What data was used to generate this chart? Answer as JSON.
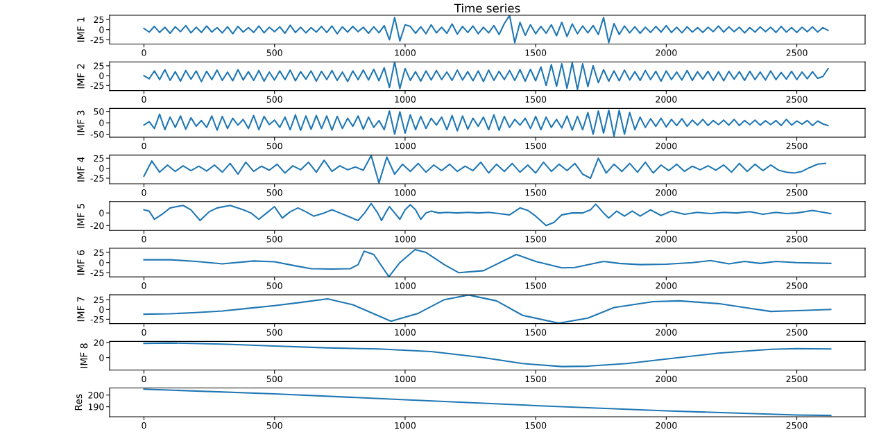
{
  "chart_data": [
    {
      "type": "line",
      "title": "Time series",
      "ylabel": "IMF 1",
      "color": "#1f77b4",
      "xlim": [
        -131.5,
        2761.5
      ],
      "xticks": [
        0,
        500,
        1000,
        1500,
        2000,
        2500
      ],
      "ylim": [
        -35.5,
        35.5
      ],
      "yticks": [
        -25,
        0,
        25
      ],
      "x": [
        0,
        20,
        40,
        60,
        80,
        100,
        120,
        140,
        160,
        180,
        200,
        220,
        240,
        260,
        280,
        300,
        320,
        340,
        360,
        380,
        400,
        420,
        440,
        460,
        480,
        500,
        520,
        540,
        560,
        580,
        600,
        620,
        640,
        660,
        680,
        700,
        720,
        740,
        760,
        780,
        800,
        820,
        840,
        860,
        880,
        900,
        920,
        940,
        960,
        980,
        1000,
        1020,
        1040,
        1060,
        1080,
        1100,
        1120,
        1140,
        1160,
        1180,
        1200,
        1220,
        1240,
        1260,
        1280,
        1300,
        1320,
        1340,
        1360,
        1380,
        1400,
        1420,
        1440,
        1460,
        1480,
        1500,
        1520,
        1540,
        1560,
        1580,
        1600,
        1620,
        1640,
        1660,
        1680,
        1700,
        1720,
        1740,
        1760,
        1780,
        1800,
        1820,
        1840,
        1860,
        1880,
        1900,
        1920,
        1940,
        1960,
        1980,
        2000,
        2020,
        2040,
        2060,
        2080,
        2100,
        2120,
        2140,
        2160,
        2180,
        2200,
        2220,
        2240,
        2260,
        2280,
        2300,
        2320,
        2340,
        2360,
        2380,
        2400,
        2420,
        2440,
        2460,
        2480,
        2500,
        2520,
        2540,
        2560,
        2580,
        2600,
        2620
      ],
      "values": [
        3,
        -6,
        8,
        -7,
        6,
        -9,
        7,
        -5,
        10,
        -8,
        6,
        -7,
        9,
        -6,
        5,
        -8,
        7,
        -10,
        8,
        -6,
        5,
        -7,
        9,
        -8,
        6,
        -5,
        7,
        -9,
        11,
        -7,
        6,
        -8,
        5,
        -6,
        8,
        -7,
        9,
        -10,
        7,
        -6,
        8,
        -5,
        6,
        -9,
        7,
        -8,
        10,
        -25,
        30,
        -28,
        12,
        8,
        -9,
        7,
        -10,
        12,
        -8,
        6,
        -9,
        14,
        -11,
        8,
        -7,
        9,
        -10,
        6,
        -8,
        10,
        -12,
        15,
        35,
        -32,
        18,
        -14,
        12,
        -10,
        8,
        -9,
        12,
        -15,
        18,
        -17,
        14,
        -10,
        9,
        -8,
        10,
        -12,
        30,
        -32,
        15,
        -12,
        9,
        -8,
        7,
        -9,
        6,
        -7,
        8,
        -6,
        10,
        -7,
        6,
        -8,
        7,
        -6,
        5,
        -7,
        6,
        -5,
        9,
        -6,
        7,
        -5,
        6,
        -8,
        5,
        -6,
        7,
        -5,
        6,
        -7,
        8,
        -6,
        5,
        -7,
        6,
        -5,
        7,
        -6,
        5,
        -2
      ]
    },
    {
      "type": "line",
      "ylabel": "IMF 2",
      "color": "#1f77b4",
      "xlim": [
        -131.5,
        2761.5
      ],
      "xticks": [
        0,
        500,
        1000,
        1500,
        2000,
        2500
      ],
      "ylim": [
        -38,
        35
      ],
      "yticks": [
        -25,
        0,
        25
      ],
      "x": [
        0,
        20,
        40,
        60,
        80,
        100,
        120,
        140,
        160,
        180,
        200,
        220,
        240,
        260,
        280,
        300,
        320,
        340,
        360,
        380,
        400,
        420,
        440,
        460,
        480,
        500,
        520,
        540,
        560,
        580,
        600,
        620,
        640,
        660,
        680,
        700,
        720,
        740,
        760,
        780,
        800,
        820,
        840,
        860,
        880,
        900,
        920,
        940,
        960,
        980,
        1000,
        1020,
        1040,
        1060,
        1080,
        1100,
        1120,
        1140,
        1160,
        1180,
        1200,
        1220,
        1240,
        1260,
        1280,
        1300,
        1320,
        1340,
        1360,
        1380,
        1400,
        1420,
        1440,
        1460,
        1480,
        1500,
        1520,
        1540,
        1560,
        1580,
        1600,
        1620,
        1640,
        1660,
        1680,
        1700,
        1720,
        1740,
        1760,
        1780,
        1800,
        1820,
        1840,
        1860,
        1880,
        1900,
        1920,
        1940,
        1960,
        1980,
        2000,
        2020,
        2040,
        2060,
        2080,
        2100,
        2120,
        2140,
        2160,
        2180,
        2200,
        2220,
        2240,
        2260,
        2280,
        2300,
        2320,
        2340,
        2360,
        2380,
        2400,
        2420,
        2440,
        2460,
        2480,
        2500,
        2520,
        2540,
        2560,
        2580,
        2600,
        2620
      ],
      "values": [
        0,
        -8,
        12,
        -10,
        15,
        -12,
        10,
        -14,
        13,
        -9,
        12,
        -15,
        11,
        -10,
        14,
        -12,
        9,
        -13,
        15,
        -11,
        10,
        -12,
        13,
        -14,
        9,
        -11,
        12,
        -10,
        14,
        -13,
        10,
        -9,
        12,
        -14,
        11,
        -10,
        13,
        -12,
        9,
        -15,
        12,
        -10,
        14,
        -11,
        16,
        -13,
        20,
        -30,
        35,
        -33,
        18,
        -12,
        10,
        -14,
        12,
        -11,
        13,
        -10,
        9,
        -12,
        14,
        -11,
        10,
        -13,
        12,
        -15,
        14,
        -12,
        11,
        -10,
        13,
        -12,
        15,
        -14,
        16,
        -13,
        22,
        -25,
        28,
        -27,
        30,
        -32,
        33,
        -35,
        30,
        -28,
        25,
        -18,
        15,
        -14,
        12,
        -13,
        14,
        -11,
        10,
        -12,
        13,
        -10,
        11,
        -14,
        12,
        -10,
        9,
        -11,
        13,
        -12,
        10,
        -9,
        11,
        -12,
        10,
        -13,
        11,
        -9,
        10,
        -12,
        11,
        -10,
        9,
        -11,
        12,
        -10,
        8,
        -9,
        11,
        -10,
        9,
        -8,
        10,
        -7,
        -2,
        18
      ]
    },
    {
      "type": "line",
      "ylabel": "IMF 3",
      "color": "#1f77b4",
      "xlim": [
        -131.5,
        2761.5
      ],
      "xticks": [
        0,
        500,
        1000,
        1500,
        2000,
        2500
      ],
      "ylim": [
        -63,
        63
      ],
      "yticks": [
        -50,
        0,
        50
      ],
      "x": [
        0,
        20,
        40,
        60,
        80,
        100,
        120,
        140,
        160,
        180,
        200,
        220,
        240,
        260,
        280,
        300,
        320,
        340,
        360,
        380,
        400,
        420,
        440,
        460,
        480,
        500,
        520,
        540,
        560,
        580,
        600,
        620,
        640,
        660,
        680,
        700,
        720,
        740,
        760,
        780,
        800,
        820,
        840,
        860,
        880,
        900,
        920,
        940,
        960,
        980,
        1000,
        1020,
        1040,
        1060,
        1080,
        1100,
        1120,
        1140,
        1160,
        1180,
        1200,
        1220,
        1240,
        1260,
        1280,
        1300,
        1320,
        1340,
        1360,
        1380,
        1400,
        1420,
        1440,
        1460,
        1480,
        1500,
        1520,
        1540,
        1560,
        1580,
        1600,
        1620,
        1640,
        1660,
        1680,
        1700,
        1720,
        1740,
        1760,
        1780,
        1800,
        1820,
        1840,
        1860,
        1880,
        1900,
        1920,
        1940,
        1960,
        1980,
        2000,
        2020,
        2040,
        2060,
        2080,
        2100,
        2120,
        2140,
        2160,
        2180,
        2200,
        2220,
        2240,
        2260,
        2280,
        2300,
        2320,
        2340,
        2360,
        2380,
        2400,
        2420,
        2440,
        2460,
        2480,
        2500,
        2520,
        2540,
        2560,
        2580,
        2600,
        2620
      ],
      "values": [
        -10,
        5,
        -25,
        38,
        -30,
        25,
        -20,
        30,
        -28,
        22,
        -15,
        10,
        -20,
        30,
        -32,
        28,
        -25,
        20,
        -10,
        15,
        -25,
        32,
        -30,
        28,
        -8,
        12,
        -20,
        25,
        -30,
        35,
        -33,
        30,
        -28,
        32,
        -25,
        30,
        -32,
        28,
        -25,
        20,
        -15,
        30,
        -28,
        25,
        -20,
        10,
        -30,
        52,
        -50,
        48,
        -45,
        35,
        -30,
        28,
        -25,
        20,
        -10,
        25,
        -30,
        32,
        -35,
        30,
        -28,
        20,
        -15,
        25,
        -30,
        35,
        -33,
        28,
        -20,
        15,
        -10,
        20,
        -25,
        28,
        -30,
        25,
        -20,
        15,
        -22,
        30,
        -32,
        28,
        -30,
        45,
        -50,
        52,
        -45,
        55,
        -58,
        55,
        -50,
        45,
        -30,
        25,
        -20,
        18,
        -15,
        20,
        -18,
        15,
        -12,
        18,
        -15,
        12,
        -10,
        15,
        -12,
        10,
        -8,
        12,
        -10,
        15,
        -12,
        10,
        -8,
        12,
        -10,
        9,
        -8,
        10,
        -12,
        15,
        -10,
        8,
        -6,
        10,
        -12,
        8,
        -5,
        -12
      ]
    },
    {
      "type": "line",
      "ylabel": "IMF 4",
      "color": "#1f77b4",
      "xlim": [
        -131.5,
        2761.5
      ],
      "xticks": [
        0,
        500,
        1000,
        1500,
        2000,
        2500
      ],
      "ylim": [
        -39,
        33
      ],
      "yticks": [
        -25,
        0,
        25
      ],
      "x": [
        0,
        30,
        60,
        90,
        120,
        150,
        180,
        210,
        240,
        270,
        300,
        330,
        360,
        390,
        420,
        450,
        480,
        510,
        540,
        570,
        600,
        630,
        660,
        690,
        720,
        750,
        780,
        810,
        840,
        870,
        900,
        930,
        960,
        990,
        1020,
        1050,
        1080,
        1110,
        1140,
        1170,
        1200,
        1230,
        1260,
        1290,
        1320,
        1350,
        1380,
        1410,
        1440,
        1470,
        1500,
        1530,
        1560,
        1590,
        1620,
        1650,
        1680,
        1710,
        1740,
        1770,
        1800,
        1830,
        1860,
        1890,
        1920,
        1950,
        1980,
        2010,
        2040,
        2070,
        2100,
        2130,
        2160,
        2190,
        2220,
        2250,
        2280,
        2310,
        2340,
        2370,
        2400,
        2430,
        2460,
        2490,
        2520,
        2550,
        2580,
        2610
      ],
      "values": [
        -20,
        18,
        -10,
        8,
        -8,
        6,
        -6,
        5,
        -7,
        8,
        -10,
        12,
        -15,
        15,
        -8,
        5,
        -5,
        10,
        -12,
        6,
        -4,
        15,
        -10,
        20,
        -8,
        6,
        -4,
        3,
        -5,
        32,
        -37,
        28,
        -15,
        10,
        -8,
        12,
        -10,
        8,
        -6,
        10,
        -8,
        5,
        -6,
        15,
        -12,
        10,
        -8,
        12,
        -10,
        8,
        -12,
        15,
        -8,
        10,
        -6,
        12,
        -15,
        -25,
        25,
        -12,
        10,
        -8,
        12,
        -10,
        15,
        -12,
        8,
        -6,
        10,
        -8,
        5,
        -4,
        6,
        -5,
        8,
        -10,
        12,
        -8,
        10,
        -6,
        8,
        -5,
        -10,
        -12,
        -8,
        2,
        10,
        12
      ]
    },
    {
      "type": "line",
      "ylabel": "IMF 5",
      "color": "#1f77b4",
      "xlim": [
        -131.5,
        2761.5
      ],
      "xticks": [
        0,
        500,
        1000,
        1500,
        2000,
        2500
      ],
      "ylim": [
        -27.6,
        18
      ],
      "yticks": [
        -20,
        0
      ],
      "x": [
        0,
        20,
        40,
        70,
        100,
        150,
        180,
        215,
        250,
        280,
        330,
        380,
        410,
        440,
        470,
        500,
        530,
        560,
        590,
        620,
        650,
        690,
        720,
        750,
        780,
        820,
        845,
        870,
        895,
        910,
        925,
        940,
        960,
        980,
        1000,
        1020,
        1040,
        1060,
        1080,
        1100,
        1130,
        1160,
        1200,
        1240,
        1280,
        1320,
        1360,
        1400,
        1440,
        1470,
        1500,
        1540,
        1570,
        1600,
        1640,
        1680,
        1710,
        1730,
        1760,
        1780,
        1810,
        1840,
        1870,
        1900,
        1940,
        1980,
        2020,
        2070,
        2120,
        2170,
        2220,
        2270,
        2320,
        2370,
        2420,
        2460,
        2500,
        2560,
        2630
      ],
      "values": [
        5,
        3,
        -10,
        -2,
        8,
        12,
        5,
        -12,
        2,
        8,
        12,
        5,
        0,
        -10,
        0,
        10,
        -8,
        2,
        8,
        2,
        -5,
        0,
        5,
        0,
        -5,
        -12,
        0,
        15,
        0,
        -12,
        0,
        10,
        0,
        -10,
        5,
        13,
        5,
        -10,
        0,
        3,
        0,
        1,
        0,
        1,
        0,
        1,
        -1,
        -3,
        8,
        4,
        -5,
        -20,
        -15,
        -3,
        0,
        0,
        5,
        14,
        0,
        -8,
        3,
        -5,
        3,
        -5,
        5,
        -4,
        3,
        -2,
        1,
        -1,
        1,
        0,
        2,
        -2,
        1,
        -1,
        0,
        4,
        -1
      ]
    },
    {
      "type": "line",
      "ylabel": "IMF 6",
      "color": "#1f77b4",
      "xlim": [
        -131.5,
        2761.5
      ],
      "xticks": [
        0,
        500,
        1000,
        1500,
        2000,
        2500
      ],
      "ylim": [
        -35.5,
        35.5
      ],
      "yticks": [
        -25,
        0,
        25
      ],
      "x": [
        0,
        100,
        200,
        300,
        420,
        500,
        580,
        640,
        720,
        790,
        820,
        843,
        880,
        938,
        980,
        1038,
        1080,
        1150,
        1206,
        1300,
        1426,
        1500,
        1600,
        1650,
        1760,
        1820,
        1900,
        2000,
        2100,
        2170,
        2240,
        2300,
        2360,
        2420,
        2500,
        2630
      ],
      "values": [
        7,
        7,
        3,
        -3,
        4,
        2,
        -8,
        -15,
        -16,
        -15,
        -5,
        28,
        20,
        -35,
        0,
        32,
        25,
        -5,
        -25,
        -20,
        20,
        3,
        -13,
        -12,
        3,
        -2,
        -5,
        -4,
        0,
        5,
        -3,
        3,
        -2,
        3,
        0,
        -2
      ]
    },
    {
      "type": "line",
      "ylabel": "IMF 7",
      "color": "#1f77b4",
      "xlim": [
        -131.5,
        2761.5
      ],
      "xticks": [
        0,
        500,
        1000,
        1500,
        2000,
        2500
      ],
      "ylim": [
        -36,
        37.5
      ],
      "yticks": [
        -25,
        0,
        25
      ],
      "x": [
        0,
        100,
        200,
        300,
        400,
        500,
        600,
        703,
        800,
        946,
        1050,
        1150,
        1243,
        1350,
        1450,
        1588,
        1700,
        1800,
        1950,
        2050,
        2200,
        2300,
        2400,
        2500,
        2630
      ],
      "values": [
        -12,
        -11,
        -8,
        -4,
        3,
        10,
        18,
        27,
        12,
        -30,
        -10,
        25,
        37,
        22,
        -15,
        -35,
        -22,
        5,
        20,
        22,
        15,
        5,
        -5,
        -3,
        0
      ]
    },
    {
      "type": "line",
      "ylabel": "IMF 8",
      "color": "#1f77b4",
      "xlim": [
        -131.5,
        2761.5
      ],
      "xticks": [
        0,
        500,
        1000,
        1500,
        2000,
        2500
      ],
      "ylim": [
        -16.8,
        21.6
      ],
      "yticks": [
        0,
        20
      ],
      "x": [
        0,
        100,
        300,
        500,
        700,
        900,
        1100,
        1300,
        1450,
        1600,
        1700,
        1850,
        2000,
        2200,
        2400,
        2500,
        2630
      ],
      "values": [
        19,
        19.5,
        18,
        15.5,
        13,
        11.5,
        8,
        0,
        -8,
        -12,
        -11.5,
        -8,
        -2,
        6,
        11,
        12,
        11.5
      ]
    },
    {
      "type": "line",
      "ylabel": "Res",
      "color": "#1f77b4",
      "xlim": [
        -131.5,
        2761.5
      ],
      "xticks": [
        0,
        500,
        1000,
        1500,
        2000,
        2500
      ],
      "ylim": [
        181.5,
        206
      ],
      "yticks": [
        190,
        200
      ],
      "x": [
        0,
        500,
        1000,
        1500,
        2000,
        2500,
        2630
      ],
      "values": [
        205,
        201,
        196,
        191,
        186.5,
        183,
        182.6
      ]
    }
  ]
}
